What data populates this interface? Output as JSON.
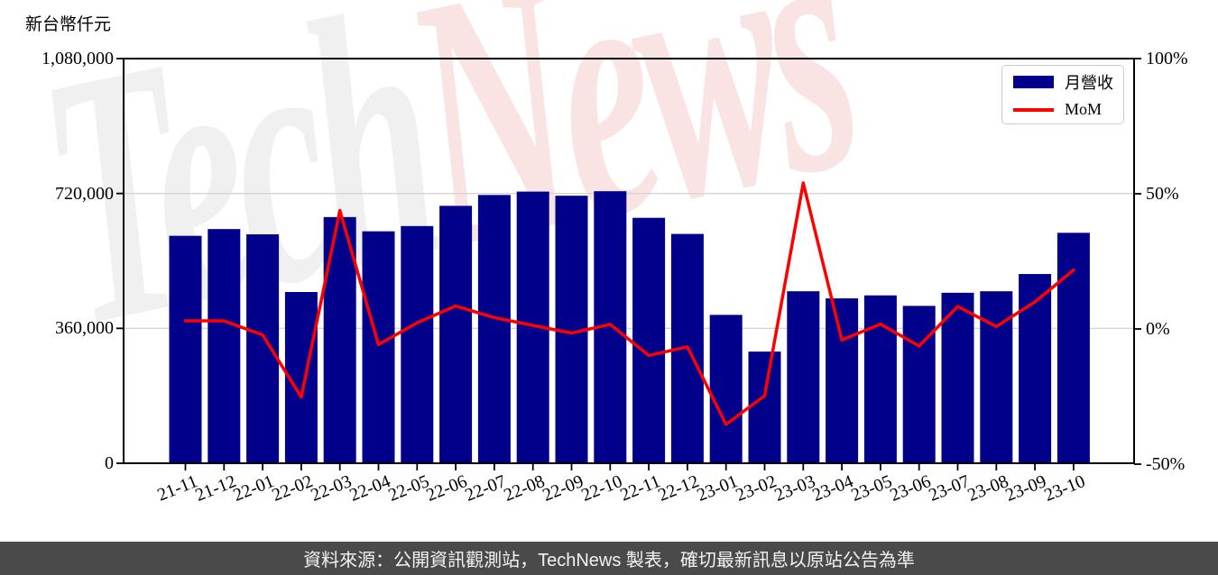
{
  "header": {
    "y_axis_title": "新台幣仟元"
  },
  "legend": {
    "bar_label": "月營收",
    "line_label": "MoM"
  },
  "watermark": {
    "text_left": "Tech",
    "text_right": "News"
  },
  "footer": {
    "source_text": "資料來源：公開資訊觀測站，TechNews 製表，確切最新訊息以原站公告為準"
  },
  "colors": {
    "bar": "#00008B",
    "line": "#FF0000",
    "grid": "#D5D5D5",
    "axis": "#000000",
    "footer_bg": "#4A4A4A",
    "watermark_gray": "rgba(130,130,130,0.12)",
    "watermark_red": "rgba(221,80,80,0.16)"
  },
  "chart_data": {
    "type": "bar",
    "subtype": "bar+line combo, dual axis",
    "title": "",
    "categories": [
      "21-11",
      "21-12",
      "22-01",
      "22-02",
      "22-03",
      "22-04",
      "22-05",
      "22-06",
      "22-07",
      "22-08",
      "22-09",
      "22-10",
      "22-11",
      "22-12",
      "23-01",
      "23-02",
      "23-03",
      "23-04",
      "23-05",
      "23-06",
      "23-07",
      "23-08",
      "23-09",
      "23-10"
    ],
    "series": [
      {
        "name": "月營收",
        "type": "bar",
        "axis": "left",
        "unit": "新台幣仟元",
        "values": [
          607000,
          625000,
          611000,
          457000,
          657000,
          619000,
          633000,
          687000,
          716000,
          725000,
          714000,
          726000,
          655000,
          612000,
          396000,
          298000,
          459000,
          440000,
          448000,
          420000,
          455000,
          459000,
          505000,
          615000
        ]
      },
      {
        "name": "MoM",
        "type": "line",
        "axis": "right",
        "unit": "%",
        "values": [
          3.0,
          3.0,
          -2.2,
          -25.2,
          43.8,
          -5.8,
          2.3,
          8.5,
          4.2,
          1.3,
          -1.5,
          1.7,
          -9.8,
          -6.6,
          -35.3,
          -24.7,
          54.0,
          -4.1,
          1.8,
          -6.3,
          8.3,
          0.9,
          10.0,
          21.8
        ]
      }
    ],
    "left_axis": {
      "title": "新台幣仟元",
      "tick_labels": [
        "0",
        "360,000",
        "720,000",
        "1,080,000"
      ],
      "tick_values": [
        0,
        360000,
        720000,
        1080000
      ],
      "range": [
        0,
        1080000
      ]
    },
    "right_axis": {
      "tick_labels": [
        "-50%",
        "0%",
        "50%",
        "100%"
      ],
      "tick_values": [
        -50,
        0,
        50,
        100
      ],
      "range": [
        -50,
        100
      ]
    },
    "grid": "horizontal gridlines at 360,000 / 720,000 (0% / 50%)",
    "legend_position": "top-right inside plot"
  }
}
